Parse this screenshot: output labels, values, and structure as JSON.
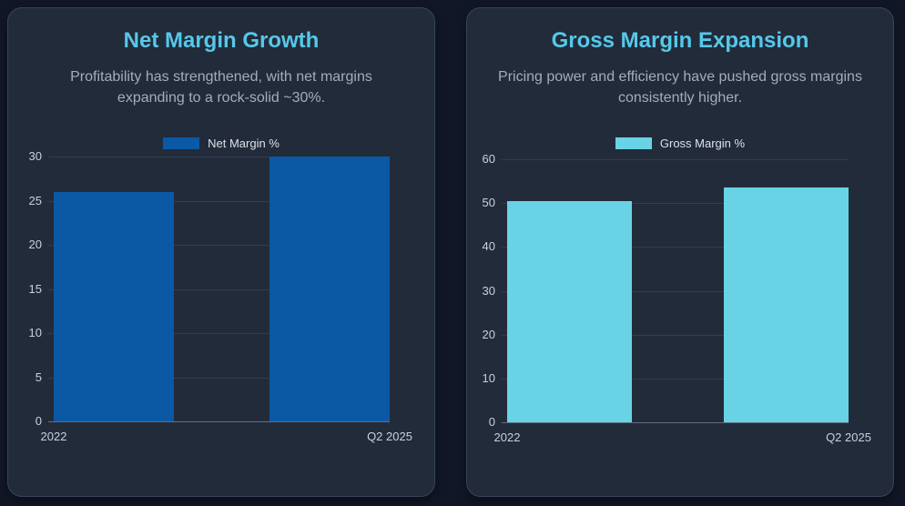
{
  "page": {
    "background": "#111726",
    "card_background": "#222b3a",
    "title_color": "#56c8e9"
  },
  "cards": [
    {
      "title": "Net Margin Growth",
      "subtitle": "Profitability has strengthened, with net margins expanding to a rock-solid ~30%.",
      "legend_label": "Net Margin %"
    },
    {
      "title": "Gross Margin Expansion",
      "subtitle": "Pricing power and efficiency have pushed gross margins consistently higher.",
      "legend_label": "Gross Margin %"
    }
  ],
  "chart_data": [
    {
      "type": "bar",
      "title": "Net Margin Growth",
      "categories": [
        "2022",
        "Q2 2025"
      ],
      "series": [
        {
          "name": "Net Margin %",
          "values": [
            26,
            30
          ]
        }
      ],
      "ylim": [
        0,
        30
      ],
      "ytick_step": 5,
      "bar_color": "#0b58a5",
      "grid": true,
      "legend_position": "top"
    },
    {
      "type": "bar",
      "title": "Gross Margin Expansion",
      "categories": [
        "2022",
        "Q2 2025"
      ],
      "series": [
        {
          "name": "Gross Margin %",
          "values": [
            50.5,
            53.5
          ]
        }
      ],
      "ylim": [
        0,
        60
      ],
      "ytick_step": 10,
      "bar_color": "#69d3e6",
      "grid": true,
      "legend_position": "top"
    }
  ]
}
